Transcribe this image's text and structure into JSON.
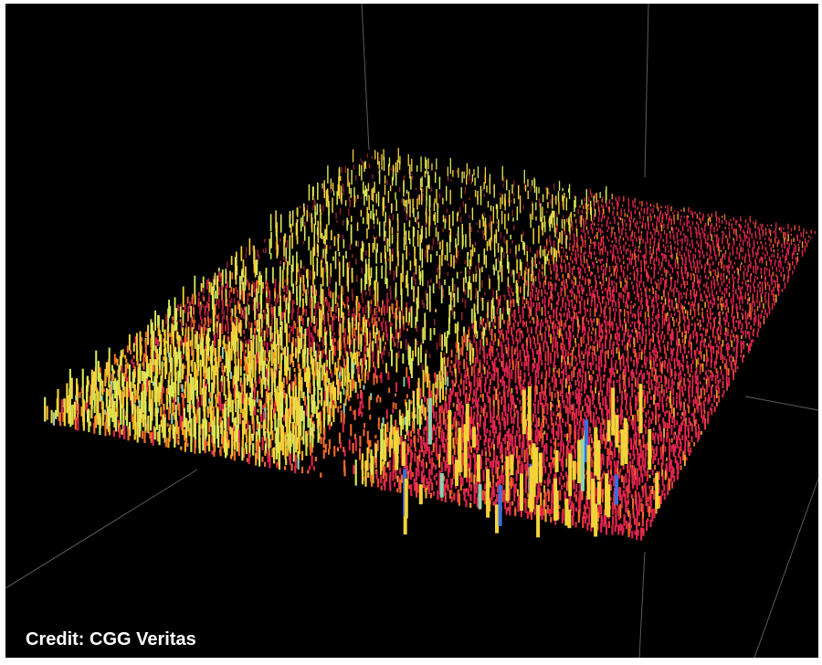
{
  "image": {
    "kind": "3d-seismic-attribute-visualization",
    "background_color": "#000000",
    "palette": [
      "#d8204a",
      "#ee3b3b",
      "#f26a2a",
      "#f5a623",
      "#f4d23a",
      "#d9e85a",
      "#8fd1b0",
      "#3a6de0"
    ]
  },
  "caption": {
    "credit": "Credit: CGG Veritas",
    "color": "#ffffff"
  }
}
